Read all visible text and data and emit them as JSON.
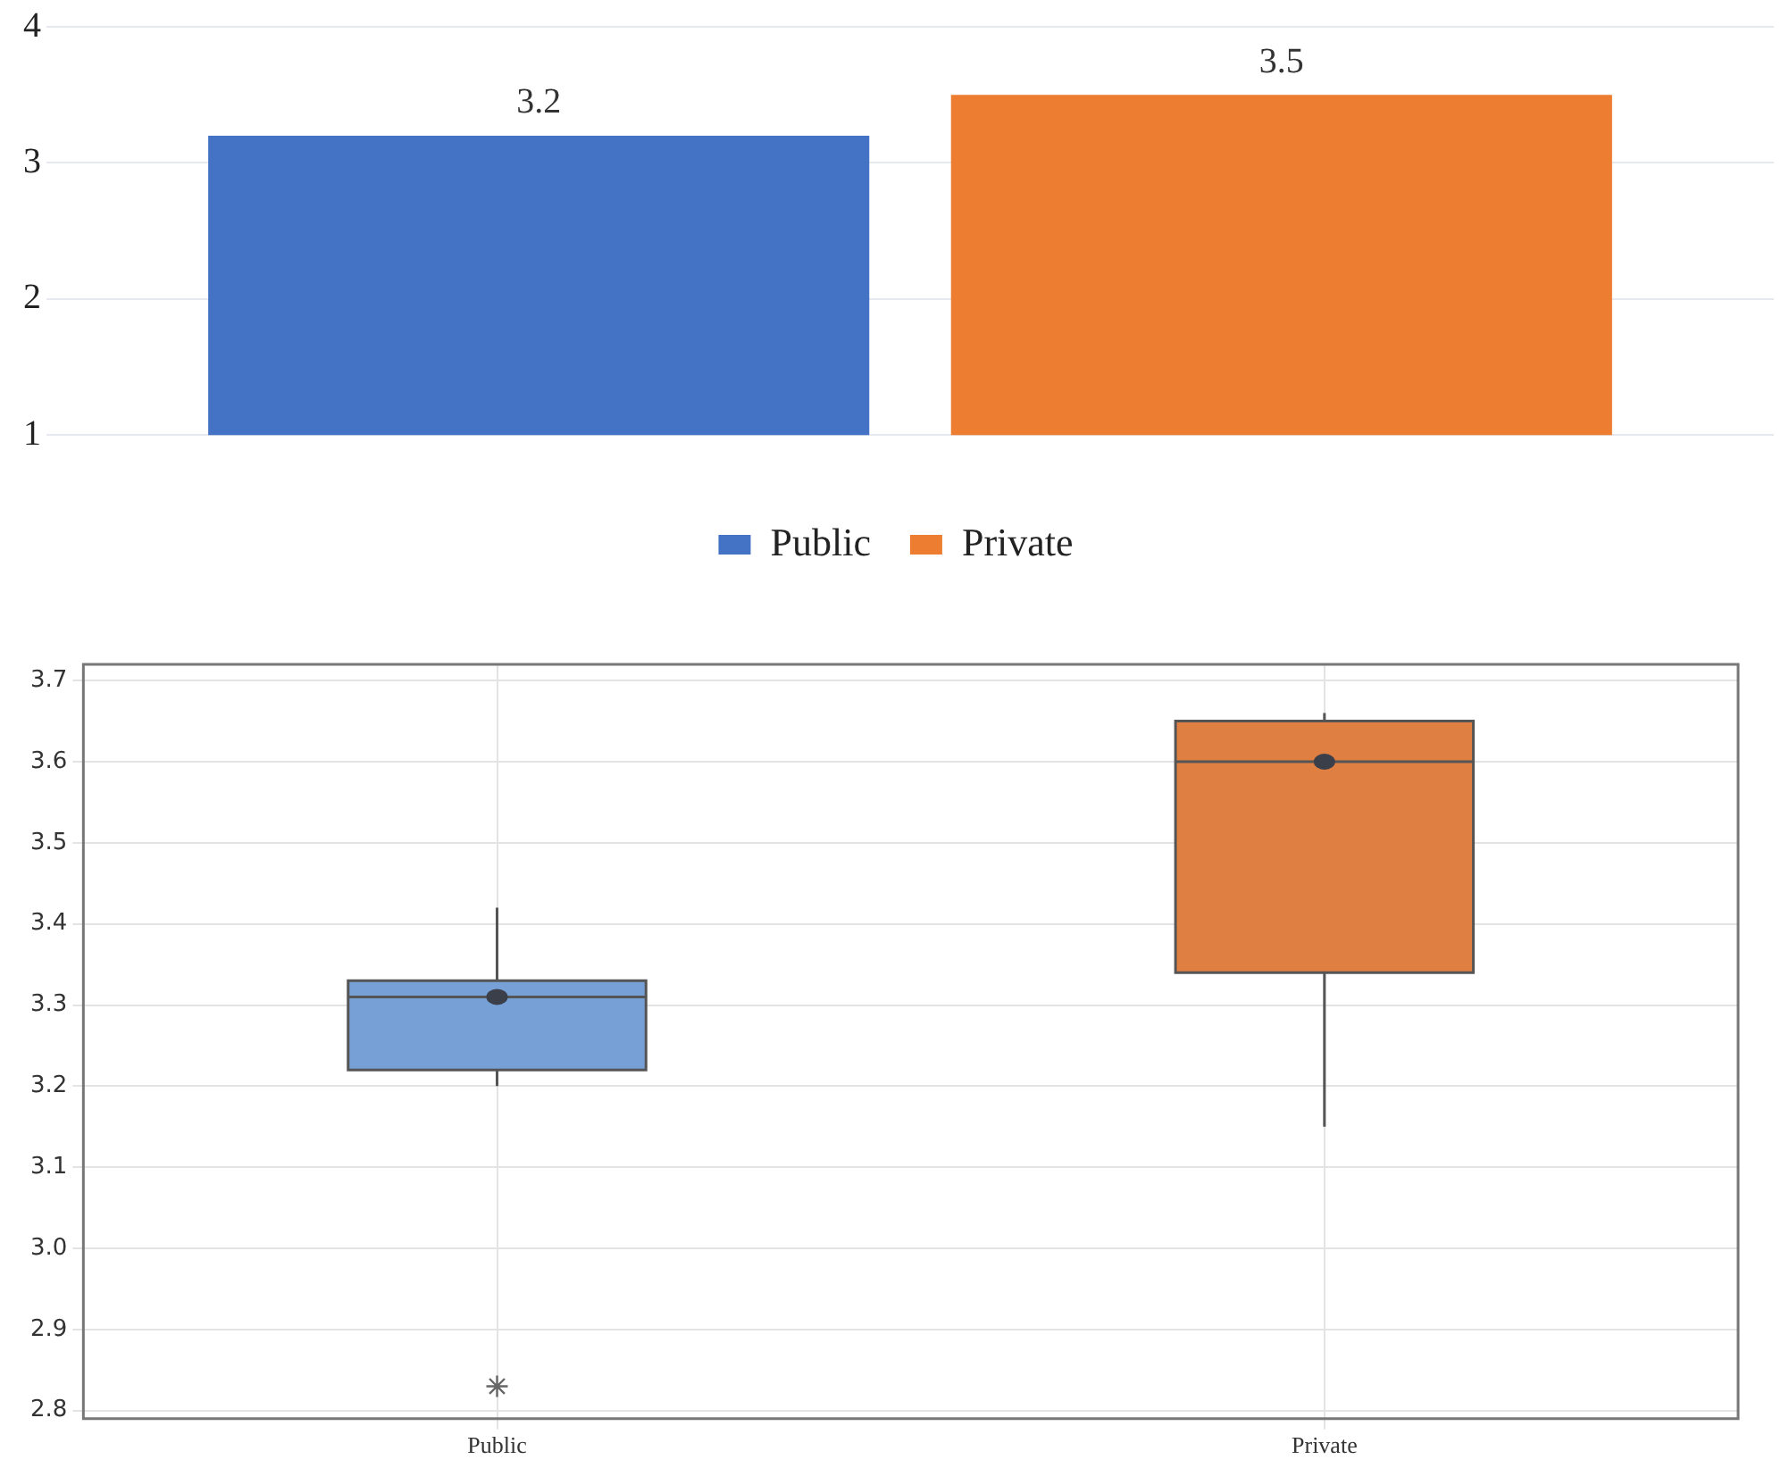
{
  "chart_data": [
    {
      "type": "bar",
      "categories": [
        null
      ],
      "series": [
        {
          "name": "Public",
          "color": "#4472c4",
          "values": [
            3.2
          ]
        },
        {
          "name": "Private",
          "color": "#ed7d31",
          "values": [
            3.5
          ]
        }
      ],
      "ylim": [
        1,
        4
      ],
      "yticks": [
        1,
        2,
        3,
        4
      ],
      "grid": "y",
      "legend": "bottom",
      "data_labels": true
    },
    {
      "type": "box",
      "categories": [
        "Public",
        "Private"
      ],
      "colors": [
        "#77a1d6",
        "#df7f42"
      ],
      "boxes": [
        {
          "low": 3.2,
          "q1": 3.22,
          "median": 3.31,
          "q3": 3.33,
          "high": 3.42,
          "mean": 3.31,
          "outliers": [
            2.83
          ]
        },
        {
          "low": 3.15,
          "q1": 3.34,
          "median": 3.6,
          "q3": 3.65,
          "high": 3.66,
          "mean": 3.6
        }
      ],
      "ylim": [
        2.79,
        3.72
      ],
      "yticks": [
        2.8,
        2.9,
        {
          "value": 3,
          "label": "3.0"
        },
        3.1,
        3.2,
        3.3,
        3.4,
        3.5,
        3.6,
        3.7
      ],
      "grid": true
    }
  ]
}
